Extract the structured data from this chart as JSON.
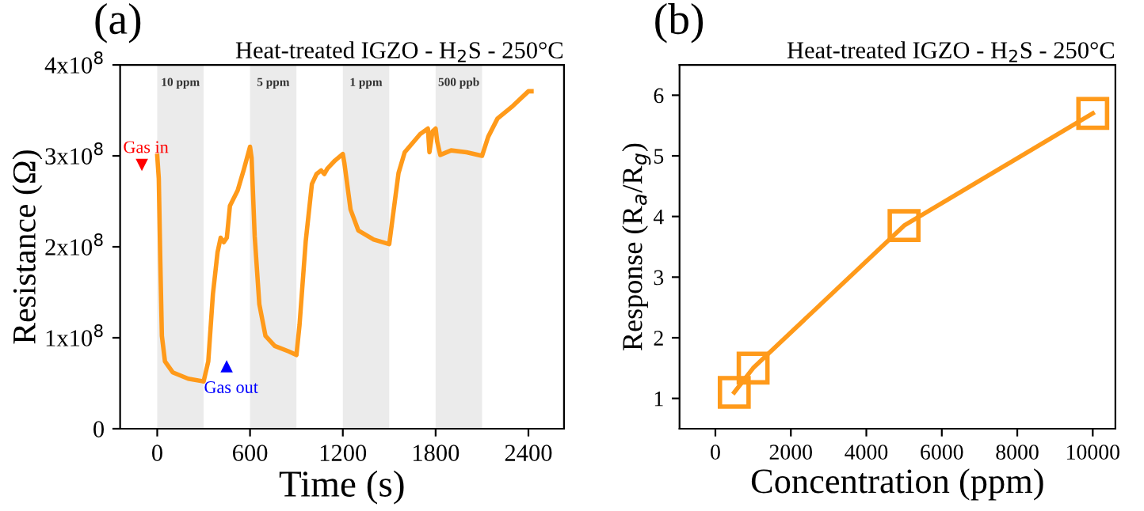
{
  "chart_data": [
    {
      "type": "line",
      "title": "Heat-treated IGZO - H$_{2}$S - 250°C",
      "xlabel": "Time (s)",
      "ylabel": "Resistance (Ω)",
      "x": [
        0,
        10,
        20,
        30,
        50,
        100,
        200,
        300,
        330,
        360,
        390,
        410,
        430,
        450,
        470,
        520,
        560,
        600,
        610,
        630,
        660,
        700,
        760,
        850,
        900,
        920,
        960,
        1000,
        1030,
        1060,
        1080,
        1100,
        1150,
        1200,
        1210,
        1250,
        1300,
        1400,
        1500,
        1520,
        1560,
        1600,
        1700,
        1750,
        1760,
        1780,
        1800,
        1810,
        1830,
        1900,
        2000,
        2100,
        2140,
        2200,
        2300,
        2400,
        2420
      ],
      "series": [
        {
          "color": "#ff9a1a",
          "values": [
            300000000.0,
            275000000.0,
            183000000.0,
            102000000.0,
            74000000.0,
            62000000.0,
            55000000.0,
            52000000.0,
            74000000.0,
            148000000.0,
            194000000.0,
            210000000.0,
            205000000.0,
            210000000.0,
            245000000.0,
            262000000.0,
            285000000.0,
            310000000.0,
            298000000.0,
            212000000.0,
            137000000.0,
            102000000.0,
            91000000.0,
            85000000.0,
            81000000.0,
            114000000.0,
            206000000.0,
            269000000.0,
            280000000.0,
            284000000.0,
            280000000.0,
            286000000.0,
            295000000.0,
            302000000.0,
            292000000.0,
            241000000.0,
            218000000.0,
            208000000.0,
            203000000.0,
            229000000.0,
            281000000.0,
            304000000.0,
            324000000.0,
            330000000.0,
            304000000.0,
            327000000.0,
            330000000.0,
            316000000.0,
            301000000.0,
            306000000.0,
            304000000.0,
            300000000.0,
            321000000.0,
            341000000.0,
            355000000.0,
            371000000.0,
            371000000.0
          ]
        }
      ],
      "xlim": [
        -240,
        2630
      ],
      "ylim": [
        0,
        400000000.0
      ],
      "xticks": [
        0,
        600,
        1200,
        1800,
        2400
      ],
      "yticks": [
        0,
        {
          "value": 100000000.0,
          "label": "1x10$^{8}$"
        },
        {
          "value": 200000000.0,
          "label": "2x10$^{8}$"
        },
        {
          "value": 300000000.0,
          "label": "3x10$^{8}$"
        },
        {
          "value": 400000000.0,
          "label": "4x10$^{8}$"
        }
      ],
      "bands": [
        {
          "axis": "x",
          "from": 0,
          "to": 300,
          "label": "10 ppm",
          "color": "#ebebeb"
        },
        {
          "axis": "x",
          "from": 600,
          "to": 900,
          "label": "5 ppm",
          "color": "#ebebeb"
        },
        {
          "axis": "x",
          "from": 1200,
          "to": 1500,
          "label": "1 ppm",
          "color": "#ebebeb"
        },
        {
          "axis": "x",
          "from": 1800,
          "to": 2100,
          "label": "500 ppb",
          "color": "#ebebeb"
        }
      ],
      "annotations": [
        "(a)",
        "Gas in",
        "Gas out"
      ],
      "marker": "none",
      "line_style": "solid",
      "grid": false,
      "legend": false
    },
    {
      "type": "line",
      "title": "Heat-treated IGZO - H$_{2}$S - 250°C",
      "xlabel": "Concentration (ppm)",
      "ylabel": "Response (R$_{a}$/R$_{g}$)",
      "x": [
        500,
        1000,
        5000,
        10000
      ],
      "series": [
        {
          "color": "#ff9a1a",
          "values": [
            1.1,
            1.5,
            3.85,
            5.7
          ]
        }
      ],
      "xlim": [
        -950,
        10600
      ],
      "ylim": [
        0.5,
        6.5
      ],
      "xticks": [
        0,
        2000,
        4000,
        6000,
        8000,
        10000
      ],
      "yticks": [
        1,
        2,
        3,
        4,
        5,
        6
      ],
      "annotations": [
        "(b)"
      ],
      "marker": "square",
      "line_style": "solid",
      "grid": false,
      "legend": false
    }
  ]
}
